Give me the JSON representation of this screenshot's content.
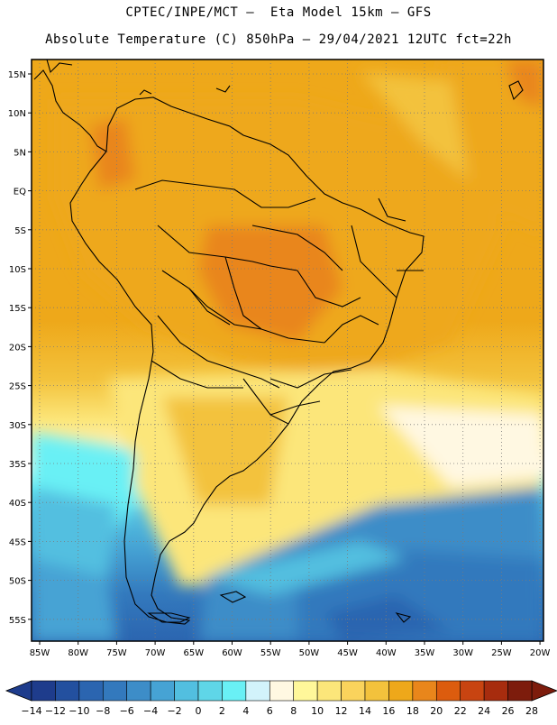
{
  "header": {
    "line1": "CPTEC/INPE/MCT –  Eta Model 15km – GFS",
    "line2": "Absolute Temperature (C) 850hPa – 29/04/2021 12UTC fct=22h"
  },
  "map": {
    "lat_labels": [
      "15N",
      "10N",
      "5N",
      "EQ",
      "5S",
      "10S",
      "15S",
      "20S",
      "25S",
      "30S",
      "35S",
      "40S",
      "45S",
      "50S",
      "55S"
    ],
    "lon_labels": [
      "85W",
      "80W",
      "75W",
      "70W",
      "65W",
      "60W",
      "55W",
      "50W",
      "45W",
      "40W",
      "35W",
      "30W",
      "25W",
      "20W"
    ]
  },
  "colorbar": {
    "labels": [
      "-14",
      "-12",
      "-10",
      "-8",
      "-6",
      "-4",
      "-2",
      "0",
      "2",
      "4",
      "6",
      "8",
      "10",
      "12",
      "14",
      "16",
      "18",
      "20",
      "22",
      "24",
      "26",
      "28"
    ],
    "colors": [
      "#1e3c8c",
      "#23509f",
      "#2b65b0",
      "#3379bd",
      "#3d8dc8",
      "#46a3d4",
      "#52bfe0",
      "#5fd6e8",
      "#69f0f5",
      "#d2f3fb",
      "#fff8e2",
      "#fff79a",
      "#fce67a",
      "#fad35c",
      "#f3c23c",
      "#eea81a",
      "#e9861b",
      "#dc5c0e",
      "#c84411",
      "#a72c0e",
      "#7d1c0c"
    ],
    "under_color": "#1e3c8c",
    "over_color": "#7d1c0c"
  }
}
